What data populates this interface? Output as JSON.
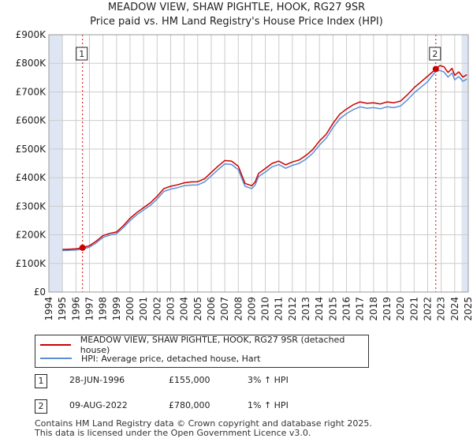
{
  "header": {
    "title": "MEADOW VIEW, SHAW PIGHTLE, HOOK, RG27 9SR",
    "subtitle": "Price paid vs. HM Land Registry's House Price Index (HPI)"
  },
  "colors": {
    "property": "#cc0000",
    "hpi": "#5b8fd6",
    "band": "#dfe6f3",
    "grid": "#cccccc",
    "marker": "#cc0000"
  },
  "legend": {
    "property_label": "MEADOW VIEW, SHAW PIGHTLE, HOOK, RG27 9SR (detached house)",
    "hpi_label": "HPI: Average price, detached house, Hart"
  },
  "transactions": [
    {
      "num": "1",
      "date": "28-JUN-1996",
      "price": "£155,000",
      "hpi": "3% ↑ HPI"
    },
    {
      "num": "2",
      "date": "09-AUG-2022",
      "price": "£780,000",
      "hpi": "1% ↑ HPI"
    }
  ],
  "footer": {
    "line1": "Contains HM Land Registry data © Crown copyright and database right 2025.",
    "line2": "This data is licensed under the Open Government Licence v3.0."
  },
  "chart_data": {
    "type": "line",
    "title": "MEADOW VIEW, SHAW PIGHTLE, HOOK, RG27 9SR",
    "subtitle": "Price paid vs. HM Land Registry's House Price Index (HPI)",
    "xlim": [
      1994,
      2025
    ],
    "ylim": [
      0,
      900000
    ],
    "x_ticks": [
      1994,
      1995,
      1996,
      1997,
      1998,
      1999,
      2000,
      2001,
      2002,
      2003,
      2004,
      2005,
      2006,
      2007,
      2008,
      2009,
      2010,
      2011,
      2012,
      2013,
      2014,
      2015,
      2016,
      2017,
      2018,
      2019,
      2020,
      2021,
      2022,
      2023,
      2024,
      2025
    ],
    "y_ticks": [
      {
        "value": 0,
        "label": "£0"
      },
      {
        "value": 100000,
        "label": "£100K"
      },
      {
        "value": 200000,
        "label": "£200K"
      },
      {
        "value": 300000,
        "label": "£300K"
      },
      {
        "value": 400000,
        "label": "£400K"
      },
      {
        "value": 500000,
        "label": "£500K"
      },
      {
        "value": 600000,
        "label": "£600K"
      },
      {
        "value": 700000,
        "label": "£700K"
      },
      {
        "value": 800000,
        "label": "£800K"
      },
      {
        "value": 900000,
        "label": "£900K"
      }
    ],
    "grid": true,
    "shaded_ranges": [
      [
        1994,
        1995
      ],
      [
        2024.5,
        2025
      ]
    ],
    "series": [
      {
        "name": "MEADOW VIEW, SHAW PIGHTLE, HOOK, RG27 9SR (detached house)",
        "x": [
          1995.0,
          1995.5,
          1996.0,
          1996.49,
          1997.0,
          1997.5,
          1998.0,
          1998.5,
          1999.0,
          1999.5,
          2000.0,
          2000.5,
          2001.0,
          2001.5,
          2002.0,
          2002.5,
          2003.0,
          2003.5,
          2004.0,
          2004.5,
          2005.0,
          2005.5,
          2006.0,
          2006.5,
          2007.0,
          2007.5,
          2008.0,
          2008.5,
          2009.0,
          2009.25,
          2009.5,
          2010.0,
          2010.5,
          2011.0,
          2011.5,
          2012.0,
          2012.5,
          2013.0,
          2013.5,
          2014.0,
          2014.5,
          2015.0,
          2015.5,
          2016.0,
          2016.5,
          2017.0,
          2017.5,
          2018.0,
          2018.5,
          2019.0,
          2019.5,
          2020.0,
          2020.5,
          2021.0,
          2021.5,
          2022.0,
          2022.6,
          2022.9,
          2023.2,
          2023.5,
          2023.8,
          2024.0,
          2024.3,
          2024.6,
          2024.9
        ],
        "values": [
          149000,
          150000,
          151000,
          155000,
          162000,
          178000,
          197000,
          205000,
          210000,
          232000,
          258000,
          278000,
          295000,
          312000,
          335000,
          362000,
          370000,
          375000,
          382000,
          385000,
          386000,
          396000,
          418000,
          440000,
          460000,
          458000,
          440000,
          380000,
          372000,
          385000,
          415000,
          432000,
          450000,
          458000,
          445000,
          455000,
          462000,
          478000,
          498000,
          528000,
          552000,
          590000,
          622000,
          640000,
          655000,
          665000,
          660000,
          662000,
          658000,
          665000,
          662000,
          668000,
          690000,
          715000,
          735000,
          755000,
          780000,
          792000,
          788000,
          768000,
          782000,
          758000,
          770000,
          752000,
          760000
        ]
      },
      {
        "name": "HPI: Average price, detached house, Hart",
        "x": [
          1995.0,
          1995.5,
          1996.0,
          1996.49,
          1997.0,
          1997.5,
          1998.0,
          1998.5,
          1999.0,
          1999.5,
          2000.0,
          2000.5,
          2001.0,
          2001.5,
          2002.0,
          2002.5,
          2003.0,
          2003.5,
          2004.0,
          2004.5,
          2005.0,
          2005.5,
          2006.0,
          2006.5,
          2007.0,
          2007.5,
          2008.0,
          2008.5,
          2009.0,
          2009.25,
          2009.5,
          2010.0,
          2010.5,
          2011.0,
          2011.5,
          2012.0,
          2012.5,
          2013.0,
          2013.5,
          2014.0,
          2014.5,
          2015.0,
          2015.5,
          2016.0,
          2016.5,
          2017.0,
          2017.5,
          2018.0,
          2018.5,
          2019.0,
          2019.5,
          2020.0,
          2020.5,
          2021.0,
          2021.5,
          2022.0,
          2022.6,
          2022.9,
          2023.2,
          2023.5,
          2023.8,
          2024.0,
          2024.3,
          2024.6,
          2024.9
        ],
        "values": [
          145000,
          146000,
          147000,
          150000,
          157000,
          172000,
          191000,
          199000,
          204000,
          225000,
          250000,
          270000,
          287000,
          303000,
          325000,
          352000,
          360000,
          365000,
          372000,
          374000,
          375000,
          385000,
          406000,
          428000,
          448000,
          446000,
          428000,
          370000,
          362000,
          375000,
          404000,
          420000,
          438000,
          446000,
          433000,
          443000,
          450000,
          465000,
          485000,
          514000,
          538000,
          575000,
          606000,
          624000,
          638000,
          648000,
          643000,
          645000,
          641000,
          648000,
          645000,
          651000,
          672000,
          697000,
          716000,
          736000,
          772000,
          775000,
          770000,
          752000,
          766000,
          742000,
          754000,
          737000,
          745000
        ]
      }
    ],
    "annotations": [
      {
        "label": "1",
        "x": 1996.49,
        "y": 155000
      },
      {
        "label": "2",
        "x": 2022.6,
        "y": 780000
      }
    ]
  }
}
